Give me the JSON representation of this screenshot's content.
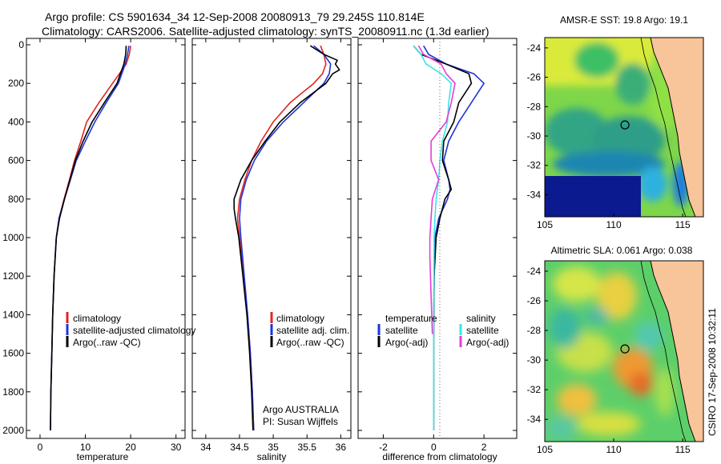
{
  "header": {
    "line1": "Argo profile: CS 5901634_34 12-Sep-2008 20080913_79 29.245S 110.814E",
    "line2": "Climatology: CARS2006. Satellite-adjusted climatology: synTS_20080911.nc (1.3d earlier)"
  },
  "side_label": "CSIRO 17-Sep-2008 10:32:11",
  "colors": {
    "red": "#e0261f",
    "blue": "#1f34d8",
    "black": "#000000",
    "cyan": "#39e6e6",
    "magenta": "#e63cd8",
    "land": "#f8c49a"
  },
  "chart_data": [
    {
      "type": "line",
      "id": "temperature",
      "xlabel": "temperature",
      "ylabel": "",
      "xlim": [
        -3,
        32
      ],
      "ylim": [
        2050,
        0
      ],
      "xticks": [
        0,
        10,
        20,
        30
      ],
      "yticks": [
        0,
        200,
        400,
        600,
        800,
        1000,
        1200,
        1400,
        1600,
        1800,
        2000
      ],
      "legend": [
        "climatology",
        "satellite-adjusted climatology",
        "Argo(..raw -QC)"
      ],
      "series": [
        {
          "name": "climatology",
          "color": "red",
          "depth": [
            5,
            50,
            100,
            200,
            300,
            400,
            500,
            600,
            700,
            800,
            900,
            1000,
            1200,
            1400,
            1600,
            1800,
            2000
          ],
          "values": [
            20.0,
            19.7,
            19.0,
            16.0,
            13.0,
            10.3,
            9.0,
            7.6,
            6.5,
            5.3,
            4.2,
            3.6,
            3.1,
            2.8,
            2.6,
            2.4,
            2.3
          ]
        },
        {
          "name": "satellite-adjusted climatology",
          "color": "blue",
          "depth": [
            5,
            50,
            100,
            200,
            300,
            400,
            500,
            600,
            700,
            800,
            900,
            1000,
            1200,
            1400,
            1600,
            1800,
            2000
          ],
          "values": [
            19.6,
            19.3,
            18.8,
            17.3,
            14.6,
            12.1,
            10.0,
            8.0,
            6.7,
            5.4,
            4.2,
            3.6,
            3.1,
            2.8,
            2.6,
            2.4,
            2.3
          ]
        },
        {
          "name": "Argo(..raw -QC)",
          "color": "black",
          "depth": [
            5,
            50,
            100,
            200,
            300,
            400,
            500,
            600,
            700,
            800,
            900,
            1000,
            1200,
            1400,
            1600,
            1800,
            2000
          ],
          "values": [
            19.0,
            18.9,
            18.5,
            17.0,
            14.2,
            11.5,
            9.5,
            7.8,
            6.6,
            5.4,
            4.3,
            3.6,
            3.1,
            2.8,
            2.6,
            2.4,
            2.3
          ]
        }
      ]
    },
    {
      "type": "line",
      "id": "salinity",
      "xlabel": "salinity",
      "ylabel": "",
      "xlim": [
        33.8,
        36.15
      ],
      "ylim": [
        2050,
        0
      ],
      "xticks": [
        34,
        34.5,
        35,
        35.5,
        36
      ],
      "legend": [
        "climatology",
        "satellite adj. clim.",
        "Argo(..raw -QC)"
      ],
      "annotation": [
        "Argo AUSTRALIA",
        "PI: Susan Wijffels"
      ],
      "series": [
        {
          "name": "climatology",
          "color": "red",
          "depth": [
            5,
            50,
            100,
            150,
            200,
            300,
            400,
            500,
            600,
            700,
            800,
            900,
            1000,
            1200,
            1400,
            1600,
            1800,
            2000
          ],
          "values": [
            35.7,
            35.75,
            35.78,
            35.73,
            35.6,
            35.25,
            35.0,
            34.82,
            34.68,
            34.58,
            34.5,
            34.47,
            34.5,
            34.56,
            34.62,
            34.66,
            34.69,
            34.71
          ]
        },
        {
          "name": "satellite adj. clim.",
          "color": "blue",
          "depth": [
            5,
            50,
            100,
            150,
            200,
            300,
            400,
            500,
            600,
            700,
            800,
            900,
            1000,
            1200,
            1400,
            1600,
            1800,
            2000
          ],
          "values": [
            35.6,
            35.75,
            35.85,
            35.83,
            35.75,
            35.45,
            35.15,
            34.9,
            34.72,
            34.6,
            34.52,
            34.5,
            34.52,
            34.57,
            34.62,
            34.66,
            34.69,
            34.71
          ]
        },
        {
          "name": "Argo(..raw -QC)",
          "color": "black",
          "depth": [
            5,
            50,
            80,
            100,
            130,
            150,
            200,
            300,
            400,
            500,
            600,
            700,
            800,
            850,
            900,
            1000,
            1200,
            1400,
            1600,
            1800,
            2000
          ],
          "values": [
            35.55,
            35.75,
            35.95,
            35.92,
            35.98,
            35.88,
            35.78,
            35.4,
            35.1,
            34.88,
            34.68,
            34.52,
            34.42,
            34.42,
            34.44,
            34.49,
            34.55,
            34.61,
            34.65,
            34.68,
            34.7
          ]
        }
      ]
    },
    {
      "type": "line",
      "id": "difference",
      "xlabel": "difference from climatology",
      "ylabel": "",
      "xlim": [
        -3,
        3.3
      ],
      "ylim": [
        2050,
        0
      ],
      "xticks": [
        -2,
        0,
        2
      ],
      "legend_temperature": {
        "title": "temperature",
        "items": [
          "satellite",
          "Argo(-adj)"
        ]
      },
      "legend_salinity": {
        "title": "salinity",
        "items": [
          "satellite",
          "Argo(-adj)"
        ]
      },
      "series": [
        {
          "name": "temperature satellite",
          "color": "blue",
          "depth": [
            5,
            50,
            100,
            150,
            200,
            300,
            400,
            500,
            600,
            700,
            750,
            800,
            900,
            1000,
            1200,
            1500,
            2000
          ],
          "values": [
            -0.4,
            -0.2,
            0.5,
            1.6,
            2.0,
            1.5,
            1.0,
            0.6,
            0.4,
            0.6,
            0.65,
            0.55,
            0.2,
            0.05,
            0.02,
            0.0,
            0.0
          ]
        },
        {
          "name": "temperature Argo(-adj)",
          "color": "black",
          "depth": [
            5,
            50,
            100,
            150,
            200,
            300,
            400,
            500,
            600,
            700,
            750,
            800,
            900,
            1000,
            1200,
            1500,
            2000
          ],
          "values": [
            -0.8,
            -0.5,
            0.5,
            1.4,
            1.5,
            1.0,
            0.8,
            0.4,
            0.35,
            0.6,
            0.7,
            0.45,
            0.25,
            0.1,
            0.02,
            0.0,
            0.0
          ]
        },
        {
          "name": "salinity satellite",
          "color": "cyan",
          "depth": [
            5,
            50,
            100,
            150,
            200,
            300,
            400,
            500,
            600,
            700,
            800,
            900,
            1000,
            1500,
            2000
          ],
          "values": [
            -0.8,
            -0.5,
            -0.3,
            0.3,
            0.7,
            0.6,
            0.55,
            0.35,
            0.25,
            0.2,
            0.1,
            0.05,
            0.02,
            0.0,
            0.0
          ]
        },
        {
          "name": "salinity Argo(-adj)",
          "color": "magenta",
          "depth": [
            5,
            50,
            100,
            150,
            200,
            300,
            400,
            500,
            600,
            700,
            800,
            900,
            1000,
            1100,
            1300,
            1500
          ],
          "values": [
            -0.6,
            -0.4,
            0.3,
            0.5,
            0.85,
            0.7,
            0.5,
            -0.1,
            -0.1,
            0.2,
            -0.05,
            -0.1,
            -0.15,
            -0.15,
            -0.1,
            -0.05
          ]
        }
      ]
    },
    {
      "type": "heatmap",
      "id": "sst_map",
      "title": "AMSR-E SST: 19.8 Argo: 19.1",
      "xlim": [
        105,
        116.5
      ],
      "ylim": [
        -35.5,
        -23.3
      ],
      "xticks": [
        105,
        110,
        115
      ],
      "yticks": [
        -24,
        -26,
        -28,
        -30,
        -32,
        -34
      ],
      "marker": {
        "lon": 110.814,
        "lat": -29.245
      }
    },
    {
      "type": "heatmap",
      "id": "sla_map",
      "title": "Altimetric SLA: 0.061 Argo: 0.038",
      "xlim": [
        105,
        116.5
      ],
      "ylim": [
        -35.5,
        -23.3
      ],
      "xticks": [
        105,
        110,
        115
      ],
      "yticks": [
        -24,
        -26,
        -28,
        -30,
        -32,
        -34
      ],
      "marker": {
        "lon": 110.814,
        "lat": -29.245
      }
    }
  ]
}
